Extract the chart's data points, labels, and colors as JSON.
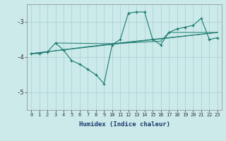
{
  "bg_color": "#cceaea",
  "line_color": "#1a7a6e",
  "grid_color": "#aacece",
  "xlabel": "Humidex (Indice chaleur)",
  "ylim": [
    -5.5,
    -2.5
  ],
  "xlim": [
    -0.5,
    23.5
  ],
  "yticks": [
    -5,
    -4,
    -3
  ],
  "xticks": [
    0,
    1,
    2,
    3,
    4,
    5,
    6,
    7,
    8,
    9,
    10,
    11,
    12,
    13,
    14,
    15,
    16,
    17,
    18,
    19,
    20,
    21,
    22,
    23
  ],
  "main_series": {
    "x": [
      0,
      1,
      2,
      3,
      4,
      5,
      6,
      7,
      8,
      9,
      10,
      11,
      12,
      13,
      14,
      15,
      16,
      17,
      18,
      19,
      20,
      21,
      22,
      23
    ],
    "y": [
      -3.9,
      -3.9,
      -3.85,
      -3.6,
      -3.8,
      -4.1,
      -4.2,
      -4.35,
      -4.5,
      -4.75,
      -3.65,
      -3.5,
      -2.75,
      -2.72,
      -2.72,
      -3.5,
      -3.65,
      -3.3,
      -3.2,
      -3.15,
      -3.1,
      -2.9,
      -3.5,
      -3.45
    ]
  },
  "trend_lines": [
    {
      "x": [
        0,
        23
      ],
      "y": [
        -3.9,
        -3.3
      ]
    },
    {
      "x": [
        0,
        10,
        23
      ],
      "y": [
        -3.9,
        -3.62,
        -3.3
      ]
    },
    {
      "x": [
        3,
        10,
        16,
        17,
        23
      ],
      "y": [
        -3.6,
        -3.62,
        -3.55,
        -3.3,
        -3.3
      ]
    }
  ]
}
